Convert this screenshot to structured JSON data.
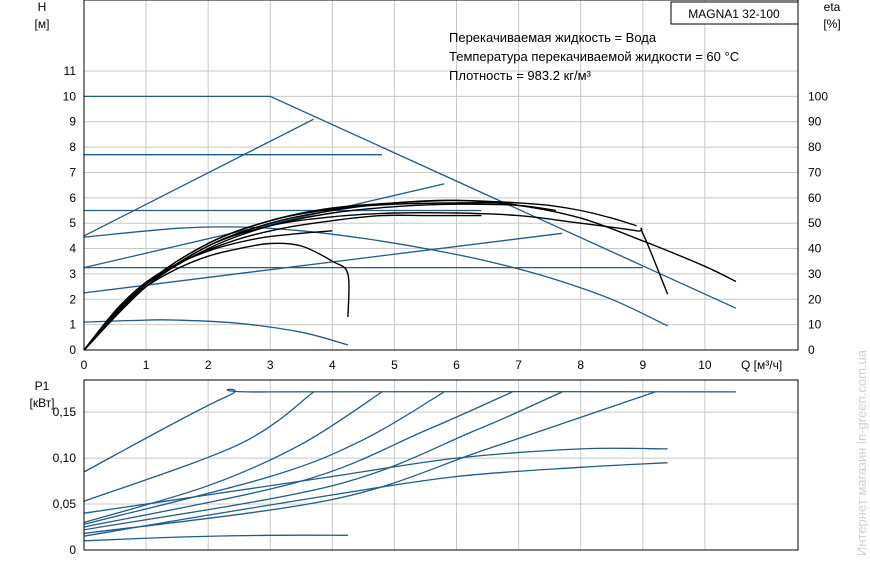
{
  "chart_data": [
    {
      "type": "line",
      "title": "MAGNA1 32-100",
      "annotations": [
        "Перекачиваемая жидкость = Вода",
        "Температура перекачиваемой жидкости = 60 °C",
        "Плотность = 983.2 кг/м³"
      ],
      "ylabel": [
        "H",
        "[м]"
      ],
      "y2label": [
        "eta",
        "[%]"
      ],
      "xlabel": "Q [м³/ч]",
      "xlim": [
        0,
        11.5
      ],
      "ylim": [
        0,
        13.8
      ],
      "y2lim": [
        0,
        138
      ],
      "x_ticks": [
        0,
        1,
        2,
        3,
        4,
        5,
        6,
        7,
        8,
        9,
        10
      ],
      "y_ticks": [
        0,
        1,
        2,
        3,
        4,
        5,
        6,
        7,
        8,
        9,
        10,
        11
      ],
      "y2_ticks": [
        0,
        10,
        20,
        30,
        40,
        50,
        60,
        70,
        80,
        90,
        100
      ],
      "grid": true,
      "colors": {
        "blue": "#1f5a8c",
        "black": "#000000",
        "grid": "#c8c8c8"
      },
      "series": [
        {
          "kind": "head",
          "color": "blue",
          "points": [
            [
              0,
              10
            ],
            [
              3,
              10
            ],
            [
              10.5,
              1.65
            ]
          ]
        },
        {
          "kind": "head",
          "color": "blue",
          "points": [
            [
              0,
              7.7
            ],
            [
              4.8,
              7.7
            ]
          ]
        },
        {
          "kind": "head",
          "color": "blue",
          "points": [
            [
              0,
              5.5
            ],
            [
              6.4,
              5.5
            ]
          ]
        },
        {
          "kind": "head",
          "color": "blue",
          "points": [
            [
              0,
              3.25
            ],
            [
              9,
              3.25
            ]
          ]
        },
        {
          "kind": "head",
          "color": "blue",
          "points": [
            [
              0,
              4.5
            ],
            [
              3.7,
              9.1
            ]
          ]
        },
        {
          "kind": "head",
          "color": "blue",
          "points": [
            [
              0,
              3.25
            ],
            [
              5.8,
              6.55
            ]
          ]
        },
        {
          "kind": "head",
          "color": "blue",
          "points": [
            [
              0,
              2.25
            ],
            [
              7.7,
              4.6
            ]
          ]
        },
        {
          "kind": "head",
          "color": "blue",
          "points": [
            [
              0,
              4.45
            ],
            [
              1.5,
              4.8
            ],
            [
              2.5,
              4.85
            ],
            [
              3.5,
              4.7
            ],
            [
              4.5,
              4.4
            ],
            [
              5.5,
              4
            ],
            [
              6.5,
              3.5
            ],
            [
              7.5,
              2.85
            ],
            [
              8.5,
              2
            ],
            [
              9.4,
              0.95
            ]
          ]
        },
        {
          "kind": "head",
          "color": "blue",
          "points": [
            [
              0,
              1.1
            ],
            [
              1,
              1.18
            ],
            [
              1.5,
              1.18
            ],
            [
              2.5,
              1.05
            ],
            [
              3.5,
              0.7
            ],
            [
              4.25,
              0.2
            ]
          ]
        },
        {
          "kind": "eta",
          "color": "black",
          "points": [
            [
              0,
              0
            ],
            [
              0.5,
              15
            ],
            [
              1,
              25
            ],
            [
              1.5,
              32
            ],
            [
              2,
              37
            ],
            [
              2.5,
              40
            ],
            [
              3,
              42
            ],
            [
              3.5,
              41
            ],
            [
              4,
              35
            ],
            [
              4.25,
              30
            ],
            [
              4.25,
              13
            ]
          ]
        },
        {
          "kind": "eta",
          "color": "black",
          "points": [
            [
              0,
              0
            ],
            [
              0.6,
              18
            ],
            [
              1.2,
              30
            ],
            [
              2,
              39
            ],
            [
              2.8,
              44
            ],
            [
              3.5,
              46
            ],
            [
              4,
              47
            ]
          ]
        },
        {
          "kind": "eta",
          "color": "black",
          "points": [
            [
              0,
              0
            ],
            [
              0.8,
              22
            ],
            [
              1.6,
              35
            ],
            [
              2.4,
              43
            ],
            [
              3.2,
              48
            ],
            [
              4,
              51
            ],
            [
              4.8,
              53
            ],
            [
              5.6,
              53
            ],
            [
              6.4,
              53
            ]
          ]
        },
        {
          "kind": "eta",
          "color": "black",
          "points": [
            [
              0,
              0
            ],
            [
              1,
              25
            ],
            [
              2,
              40
            ],
            [
              3,
              49
            ],
            [
              4,
              54
            ],
            [
              5,
              56.5
            ],
            [
              6,
              57.5
            ],
            [
              7,
              57
            ],
            [
              7.6,
              55
            ]
          ]
        },
        {
          "kind": "eta",
          "color": "black",
          "points": [
            [
              0,
              0
            ],
            [
              1,
              26
            ],
            [
              2,
              42
            ],
            [
              3,
              51
            ],
            [
              4,
              55.5
            ],
            [
              5,
              57.5
            ],
            [
              6,
              58
            ],
            [
              6.7,
              58
            ],
            [
              7,
              57
            ]
          ]
        },
        {
          "kind": "eta",
          "color": "black",
          "points": [
            [
              0,
              0
            ],
            [
              1,
              26
            ],
            [
              2,
              42
            ],
            [
              3,
              51
            ],
            [
              4,
              56
            ],
            [
              5,
              58
            ],
            [
              6,
              59
            ],
            [
              7,
              58
            ],
            [
              7.5,
              57
            ],
            [
              8,
              55
            ],
            [
              8.5,
              52
            ],
            [
              8.9,
              49
            ]
          ]
        },
        {
          "kind": "eta",
          "color": "black",
          "points": [
            [
              0,
              0
            ],
            [
              1,
              25
            ],
            [
              2,
              41
            ],
            [
              3,
              49
            ],
            [
              4,
              52.5
            ],
            [
              5,
              54
            ],
            [
              6,
              54
            ],
            [
              7,
              53
            ],
            [
              8,
              50
            ],
            [
              8.9,
              47
            ],
            [
              9,
              46
            ],
            [
              9.4,
              22
            ]
          ]
        },
        {
          "kind": "eta",
          "color": "black",
          "points": [
            [
              0,
              0
            ],
            [
              1,
              25
            ],
            [
              2,
              41
            ],
            [
              3,
              50
            ],
            [
              4,
              55
            ],
            [
              5,
              58
            ],
            [
              6,
              59
            ],
            [
              7,
              57
            ],
            [
              8,
              52
            ],
            [
              9,
              43
            ],
            [
              10,
              33
            ],
            [
              10.5,
              27
            ]
          ]
        }
      ]
    },
    {
      "type": "line",
      "ylabel": [
        "P1",
        "[кВт]"
      ],
      "xlim": [
        0,
        11.5
      ],
      "ylim": [
        0,
        0.185
      ],
      "y_ticks": [
        0,
        0.05,
        0.1,
        0.15
      ],
      "y_tick_labels": [
        "0",
        "0,05",
        "0,10",
        "0,15"
      ],
      "grid": true,
      "series": [
        {
          "color": "blue",
          "points": [
            [
              0,
              0.085
            ],
            [
              2.3,
              0.167
            ],
            [
              3,
              0.172
            ],
            [
              10.5,
              0.172
            ]
          ]
        },
        {
          "color": "blue",
          "points": [
            [
              0,
              0.053
            ],
            [
              2.5,
              0.115
            ],
            [
              3.7,
              0.172
            ]
          ]
        },
        {
          "color": "blue",
          "points": [
            [
              0,
              0.03
            ],
            [
              2,
              0.07
            ],
            [
              3.5,
              0.115
            ],
            [
              4.8,
              0.172
            ]
          ]
        },
        {
          "color": "blue",
          "points": [
            [
              0,
              0.028
            ],
            [
              3,
              0.08
            ],
            [
              4.5,
              0.12
            ],
            [
              5.8,
              0.172
            ]
          ]
        },
        {
          "color": "blue",
          "points": [
            [
              0,
              0.025
            ],
            [
              3.5,
              0.075
            ],
            [
              5.5,
              0.13
            ],
            [
              6.9,
              0.172
            ]
          ]
        },
        {
          "color": "blue",
          "points": [
            [
              0,
              0.022
            ],
            [
              4,
              0.07
            ],
            [
              6.3,
              0.13
            ],
            [
              7.7,
              0.172
            ]
          ]
        },
        {
          "color": "blue",
          "points": [
            [
              0,
              0.018
            ],
            [
              4,
              0.055
            ],
            [
              6.5,
              0.11
            ],
            [
              9.2,
              0.172
            ]
          ]
        },
        {
          "color": "blue",
          "points": [
            [
              0,
              0.015
            ],
            [
              2,
              0.038
            ],
            [
              4,
              0.06
            ],
            [
              6,
              0.08
            ],
            [
              8,
              0.09
            ],
            [
              9.4,
              0.095
            ]
          ]
        },
        {
          "color": "blue",
          "points": [
            [
              0,
              0.04
            ],
            [
              2,
              0.06
            ],
            [
              4,
              0.08
            ],
            [
              6,
              0.1
            ],
            [
              8,
              0.11
            ],
            [
              9.4,
              0.11
            ]
          ]
        },
        {
          "color": "blue",
          "points": [
            [
              0,
              0.01
            ],
            [
              1.5,
              0.014
            ],
            [
              3,
              0.016
            ],
            [
              4.25,
              0.016
            ]
          ]
        }
      ]
    }
  ],
  "watermark": "Интернет магазин in-green.com.ua"
}
